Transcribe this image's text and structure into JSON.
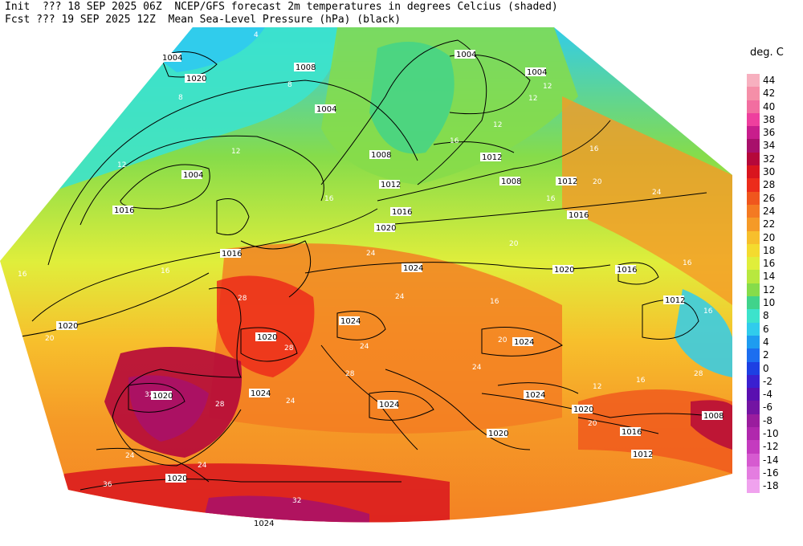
{
  "header": {
    "line1": "Init  ??? 18 SEP 2025 06Z  NCEP/GFS forecast 2m temperatures in degrees Celcius (shaded)",
    "line2": "Fcst ??? 19 SEP 2025 12Z  Mean Sea-Level Pressure (hPa) (black)"
  },
  "legend": {
    "title": "deg. C",
    "items": [
      {
        "label": "44",
        "color": "#f7b0bf"
      },
      {
        "label": "42",
        "color": "#f58fa8"
      },
      {
        "label": "40",
        "color": "#f26ea0"
      },
      {
        "label": "38",
        "color": "#ee3f9e"
      },
      {
        "label": "36",
        "color": "#c81e8c"
      },
      {
        "label": "34",
        "color": "#a8106b"
      },
      {
        "label": "32",
        "color": "#b5083a"
      },
      {
        "label": "30",
        "color": "#d9151e"
      },
      {
        "label": "28",
        "color": "#ec2c1b"
      },
      {
        "label": "26",
        "color": "#f0561d"
      },
      {
        "label": "24",
        "color": "#f47a22"
      },
      {
        "label": "22",
        "color": "#f59a27"
      },
      {
        "label": "20",
        "color": "#f7bf2c"
      },
      {
        "label": "18",
        "color": "#f4db2f"
      },
      {
        "label": "16",
        "color": "#e0ee3b"
      },
      {
        "label": "14",
        "color": "#b8e83f"
      },
      {
        "label": "12",
        "color": "#86dc4a"
      },
      {
        "label": "10",
        "color": "#40d38b"
      },
      {
        "label": "8",
        "color": "#3ce3cc"
      },
      {
        "label": "6",
        "color": "#30ccec"
      },
      {
        "label": "4",
        "color": "#1e9cf0"
      },
      {
        "label": "2",
        "color": "#1c6ef0"
      },
      {
        "label": "0",
        "color": "#1d40e3"
      },
      {
        "label": "-2",
        "color": "#3a20d0"
      },
      {
        "label": "-4",
        "color": "#5a0fb0"
      },
      {
        "label": "-6",
        "color": "#7314a3"
      },
      {
        "label": "-8",
        "color": "#9a1d9e"
      },
      {
        "label": "-10",
        "color": "#b028ad"
      },
      {
        "label": "-12",
        "color": "#c43bbf"
      },
      {
        "label": "-14",
        "color": "#d65ad0"
      },
      {
        "label": "-16",
        "color": "#e47de0"
      },
      {
        "label": "-18",
        "color": "#f0a2ee"
      }
    ]
  },
  "isobars": [
    "1004",
    "1020",
    "1008",
    "1004",
    "1004",
    "1004",
    "1004",
    "1008",
    "1012",
    "1016",
    "1020",
    "1012",
    "1008",
    "1016",
    "1020",
    "1016",
    "1016",
    "1012",
    "1024",
    "1020",
    "1024",
    "1016",
    "1020",
    "1024",
    "1024",
    "1024",
    "1020",
    "1020",
    "1024",
    "1020",
    "1024",
    "1020",
    "1016",
    "1012",
    "1008",
    "1012"
  ],
  "temp_labels": [
    "4",
    "8",
    "8",
    "12",
    "12",
    "12",
    "12",
    "12",
    "16",
    "16",
    "16",
    "16",
    "16",
    "16",
    "20",
    "20",
    "20",
    "20",
    "24",
    "24",
    "24",
    "24",
    "24",
    "24",
    "24",
    "28",
    "28",
    "28",
    "28",
    "32",
    "32",
    "36",
    "16",
    "16",
    "12",
    "20",
    "16",
    "16",
    "24",
    "28"
  ],
  "colors": {
    "cold": "#3ce3cc",
    "cool": "#86dc4a",
    "mild": "#e0ee3b",
    "warm": "#f59a27",
    "hot": "#ec2c1b",
    "veryhot": "#b5083a"
  }
}
